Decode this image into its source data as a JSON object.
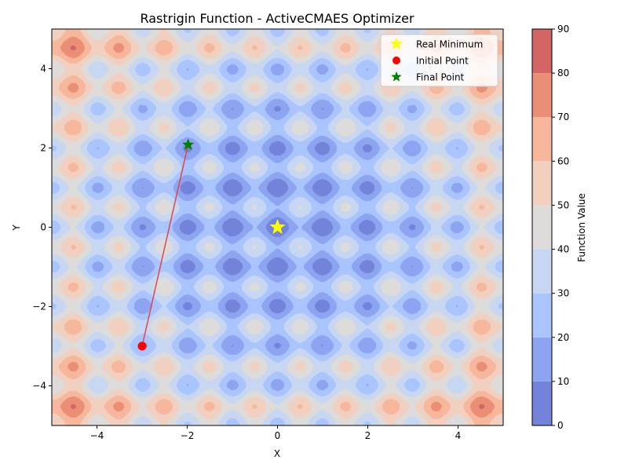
{
  "chart_data": {
    "type": "heatmap",
    "title": "Rastrigin Function - ActiveCMAES Optimizer",
    "xlabel": "X",
    "ylabel": "Y",
    "xlim": [
      -5,
      5
    ],
    "ylim": [
      -5,
      5
    ],
    "x_ticks": [
      -4,
      -2,
      0,
      2,
      4
    ],
    "y_ticks": [
      -4,
      -2,
      0,
      2,
      4
    ],
    "x_tick_labels": [
      "−4",
      "−2",
      "0",
      "2",
      "4"
    ],
    "y_tick_labels": [
      "−4",
      "−2",
      "0",
      "2",
      "4"
    ],
    "grid": false,
    "function": "20 + x^2 - 10cos(2πx) + y^2 - 10cos(2πy)",
    "contour_levels": [
      0,
      10,
      20,
      30,
      40,
      50,
      60,
      70,
      80,
      90
    ],
    "contour_colors": [
      "#7283d9",
      "#8da4f0",
      "#aac4fd",
      "#c8d7f1",
      "#dddcdb",
      "#f1d0c0",
      "#f6b79c",
      "#ea8f76",
      "#d46565"
    ],
    "colorbar": {
      "label": "Function Value",
      "ticks": [
        0,
        10,
        20,
        30,
        40,
        50,
        60,
        70,
        80,
        90
      ],
      "tick_labels": [
        "0",
        "10",
        "20",
        "30",
        "40",
        "50",
        "60",
        "70",
        "80",
        "90"
      ]
    },
    "series": [
      {
        "name": "Real Minimum",
        "kind": "star",
        "color": "#ffff00",
        "points": [
          {
            "x": 0,
            "y": 0
          }
        ]
      },
      {
        "name": "Initial Point",
        "kind": "circle",
        "color": "#ff0000",
        "points": [
          {
            "x": -3,
            "y": -3
          }
        ]
      },
      {
        "name": "Final Point",
        "kind": "star",
        "color": "#008000",
        "points": [
          {
            "x": -1.98,
            "y": 2.08
          }
        ]
      }
    ],
    "path": {
      "color": "#e0474c",
      "points": [
        {
          "x": -3,
          "y": -3
        },
        {
          "x": -1.98,
          "y": 2.08
        }
      ]
    },
    "legend_position": "upper-right"
  }
}
